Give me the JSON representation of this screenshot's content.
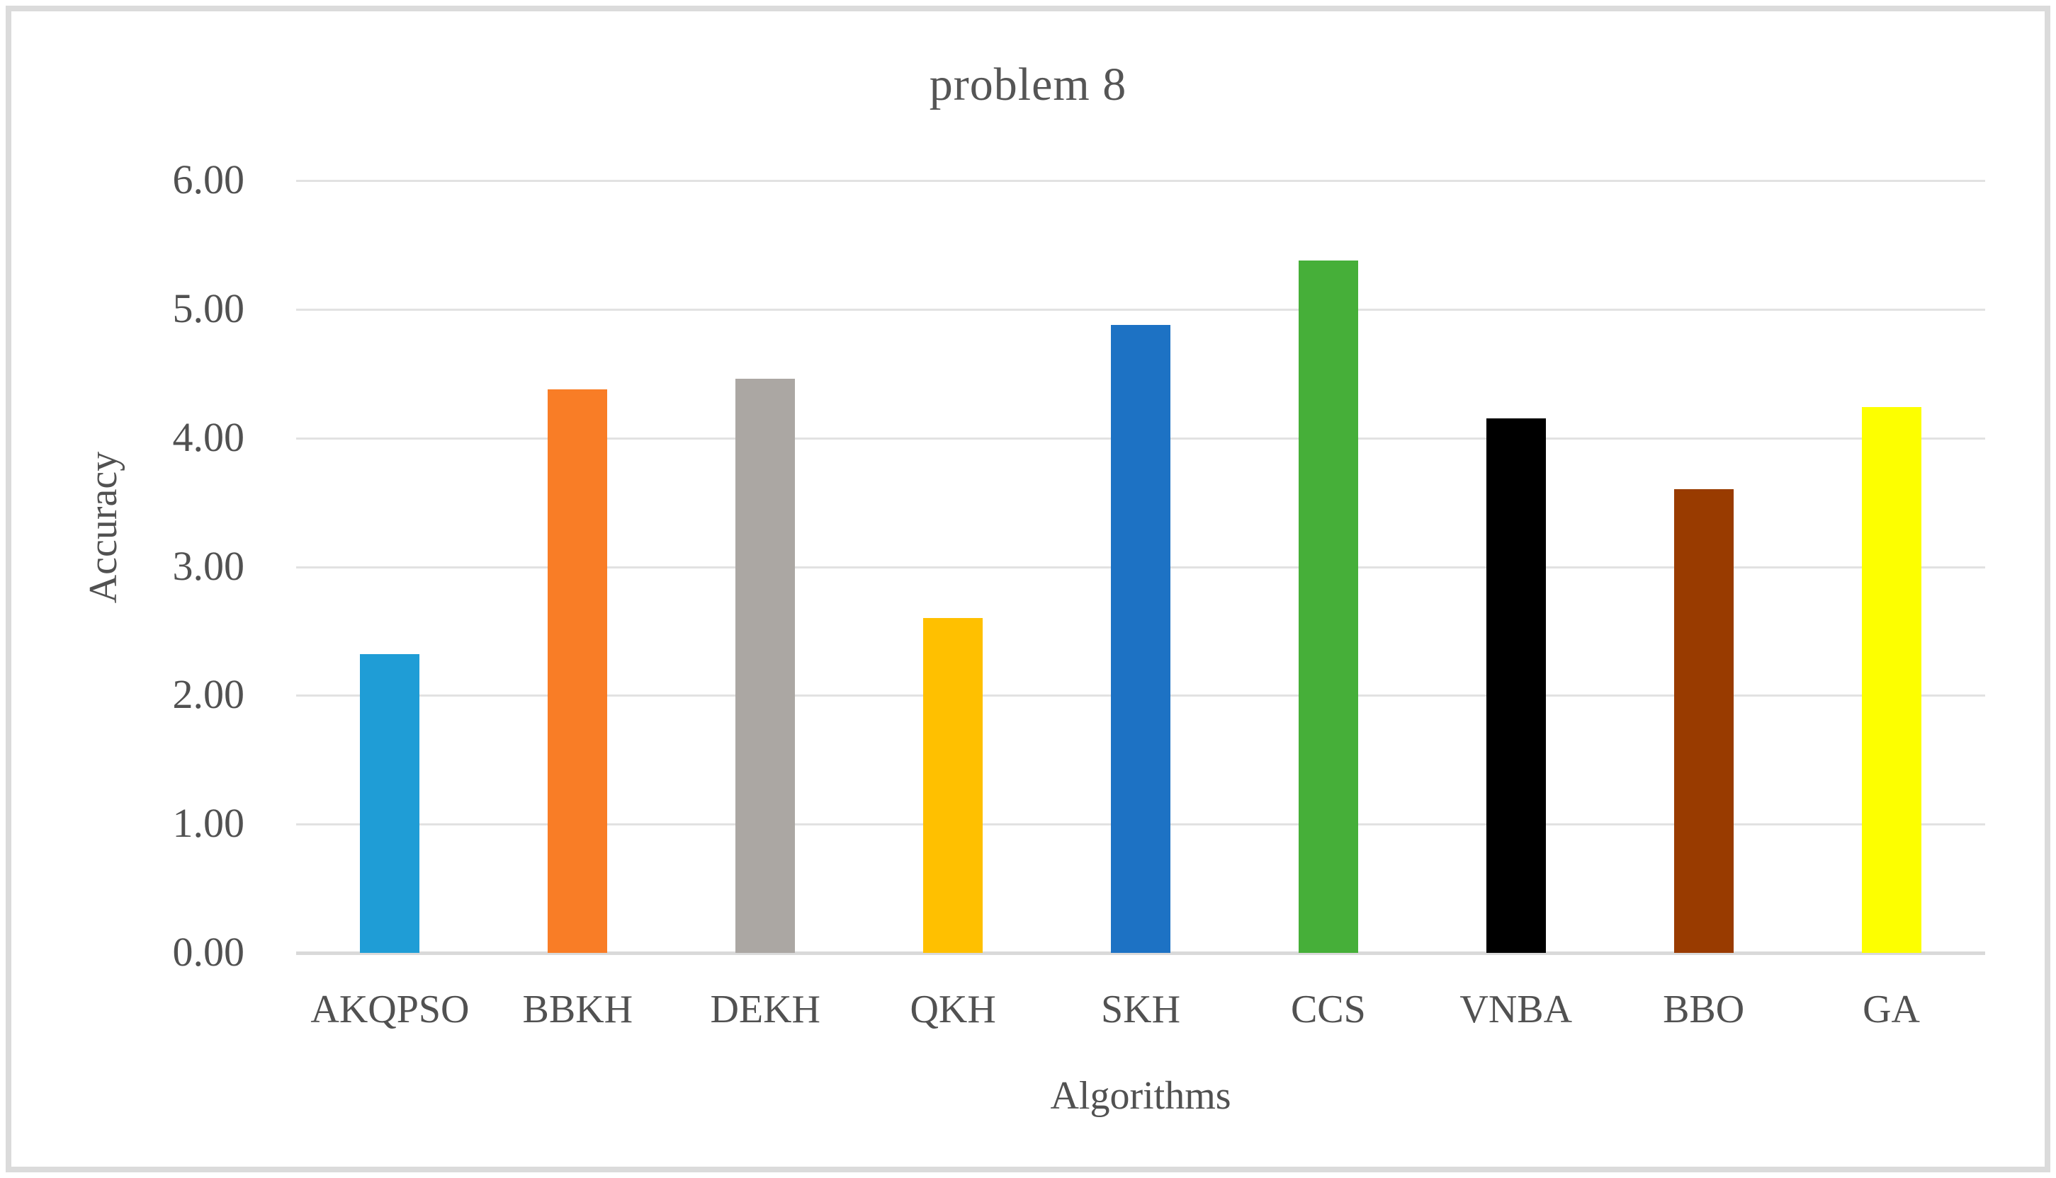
{
  "chart_data": {
    "type": "bar",
    "title": "problem 8",
    "xlabel": "Algorithms",
    "ylabel": "Accuracy",
    "categories": [
      "AKQPSO",
      "BBKH",
      "DEKH",
      "QKH",
      "SKH",
      "CCS",
      "VNBA",
      "BBO",
      "GA"
    ],
    "values": [
      2.32,
      4.38,
      4.46,
      2.6,
      4.88,
      5.38,
      4.15,
      3.6,
      4.24
    ],
    "bar_colors": [
      "#1f9dd6",
      "#f97d26",
      "#aba7a3",
      "#ffc000",
      "#1d72c4",
      "#46af39",
      "#000000",
      "#993b00",
      "#fdff00"
    ],
    "ylim": [
      0,
      6
    ],
    "ytick_step": 1,
    "ytick_labels": [
      "0.00",
      "1.00",
      "2.00",
      "3.00",
      "4.00",
      "5.00",
      "6.00"
    ],
    "grid": true,
    "legend": false,
    "colors": {
      "gridline": "#e2e2e2",
      "axis_line": "#d9d9d9",
      "text": "#515151",
      "frame_border": "#dbdbdb",
      "background": "#ffffff"
    }
  }
}
